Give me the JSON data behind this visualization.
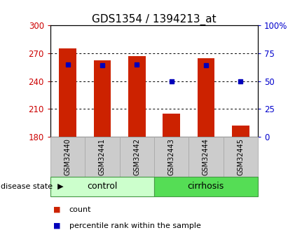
{
  "title": "GDS1354 / 1394213_at",
  "samples": [
    "GSM32440",
    "GSM32441",
    "GSM32442",
    "GSM32443",
    "GSM32444",
    "GSM32445"
  ],
  "count_values": [
    275,
    262,
    267,
    205,
    265,
    192
  ],
  "count_base": 180,
  "percentile_values": [
    65,
    64,
    65,
    50,
    64,
    50
  ],
  "groups": [
    {
      "label": "control",
      "indices": [
        0,
        1,
        2
      ],
      "color": "#ccffcc"
    },
    {
      "label": "cirrhosis",
      "indices": [
        3,
        4,
        5
      ],
      "color": "#55dd55"
    }
  ],
  "ylim_left": [
    180,
    300
  ],
  "ylim_right": [
    0,
    100
  ],
  "left_ticks": [
    180,
    210,
    240,
    270,
    300
  ],
  "right_ticks": [
    0,
    25,
    50,
    75,
    100
  ],
  "right_tick_labels": [
    "0",
    "25",
    "50",
    "75",
    "100%"
  ],
  "left_color": "#cc0000",
  "right_color": "#0000cc",
  "bar_color": "#cc2200",
  "dot_color": "#0000bb",
  "title_fontsize": 11,
  "disease_state_label": "disease state",
  "legend_items": [
    "count",
    "percentile rank within the sample"
  ],
  "tick_bg": "#cccccc",
  "group_border_color": "#449944"
}
